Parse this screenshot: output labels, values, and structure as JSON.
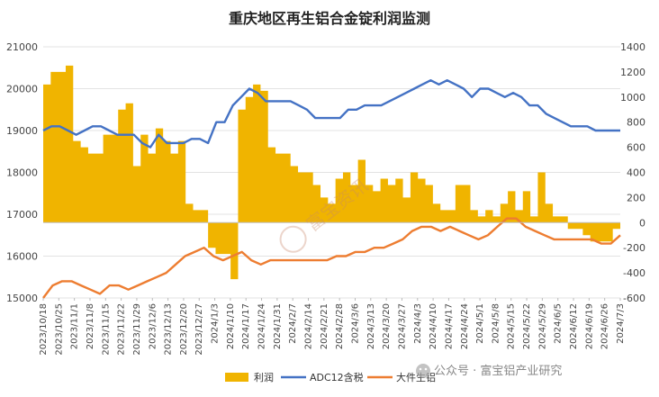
{
  "chart_data": {
    "type": "area+line",
    "title": "重庆地区再生铝合金锭利润监测",
    "xlabel": "",
    "ylabel_left": "",
    "ylabel_right": "",
    "ylim_left": [
      15000,
      21000
    ],
    "yticks_left": [
      "15000",
      "16000",
      "17000",
      "18000",
      "19000",
      "20000",
      "21000"
    ],
    "ylim_right": [
      -600,
      1400
    ],
    "yticks_right": [
      "-600",
      "-400",
      "-200",
      "0",
      "200",
      "400",
      "600",
      "800",
      "1000",
      "1200",
      "1400"
    ],
    "x_ticks": [
      "2023/10/18",
      "2023/10/25",
      "2023/11/1",
      "2023/11/8",
      "2023/11/15",
      "2023/11/22",
      "2023/11/29",
      "2023/12/6",
      "2023/12/13",
      "2023/12/20",
      "2023/12/27",
      "2024/1/3",
      "2024/1/10",
      "2024/1/17",
      "2024/1/24",
      "2024/1/31",
      "2024/2/7",
      "2024/2/14",
      "2024/2/21",
      "2024/2/28",
      "2024/3/6",
      "2024/3/13",
      "2024/3/20",
      "2024/3/27",
      "2024/4/3",
      "2024/4/10",
      "2024/4/17",
      "2024/4/24",
      "2024/5/1",
      "2024/5/8",
      "2024/5/15",
      "2024/5/22",
      "2024/5/29",
      "2024/6/5",
      "2024/6/12",
      "2024/6/19",
      "2024/6/26",
      "2024/7/3"
    ],
    "grid": true,
    "legend_position": "bottom",
    "series": [
      {
        "name": "利润",
        "axis": "right",
        "kind": "area",
        "color": "#f0b400",
        "values": [
          1100,
          1200,
          1200,
          1250,
          650,
          600,
          550,
          550,
          700,
          700,
          900,
          950,
          450,
          700,
          550,
          750,
          650,
          550,
          650,
          150,
          100,
          100,
          -200,
          -250,
          -250,
          -450,
          900,
          1000,
          1100,
          1050,
          600,
          550,
          550,
          450,
          400,
          400,
          300,
          200,
          150,
          350,
          400,
          300,
          500,
          300,
          250,
          350,
          300,
          350,
          200,
          400,
          350,
          300,
          150,
          100,
          100,
          300,
          300,
          100,
          50,
          100,
          50,
          150,
          250,
          100,
          250,
          50,
          400,
          150,
          50,
          50,
          -50,
          -50,
          -100,
          -150,
          -150,
          -150,
          -50,
          -150
        ]
      },
      {
        "name": "ADC12含税",
        "axis": "left",
        "kind": "line",
        "color": "#4472c4",
        "values": [
          19000,
          19100,
          19100,
          19000,
          18900,
          19000,
          19100,
          19100,
          19000,
          18900,
          18900,
          18900,
          18700,
          18600,
          18900,
          18700,
          18700,
          18700,
          18800,
          18800,
          18700,
          19200,
          19200,
          19600,
          19800,
          20000,
          19900,
          19700,
          19700,
          19700,
          19700,
          19600,
          19500,
          19300,
          19300,
          19300,
          19300,
          19500,
          19500,
          19600,
          19600,
          19600,
          19700,
          19800,
          19900,
          20000,
          20100,
          20200,
          20100,
          20200,
          20100,
          20000,
          19800,
          20000,
          20000,
          19900,
          19800,
          19900,
          19800,
          19600,
          19600,
          19400,
          19300,
          19200,
          19100,
          19100,
          19100,
          19000,
          19000,
          19000,
          19000
        ]
      },
      {
        "name": "大件生铝",
        "axis": "left",
        "kind": "line",
        "color": "#ed7d31",
        "values": [
          15000,
          15300,
          15400,
          15400,
          15300,
          15200,
          15100,
          15300,
          15300,
          15200,
          15300,
          15400,
          15500,
          15600,
          15800,
          16000,
          16100,
          16200,
          16000,
          15900,
          16000,
          16100,
          15900,
          15800,
          15900,
          15900,
          15900,
          15900,
          15900,
          15900,
          15900,
          16000,
          16000,
          16100,
          16100,
          16200,
          16200,
          16300,
          16400,
          16600,
          16700,
          16700,
          16600,
          16700,
          16600,
          16500,
          16400,
          16500,
          16700,
          16900,
          16900,
          16700,
          16600,
          16500,
          16400,
          16400,
          16400,
          16400,
          16400,
          16300,
          16300,
          16500
        ]
      }
    ]
  },
  "legend": {
    "items": [
      "利润",
      "ADC12含税",
      "大件生铝"
    ]
  },
  "watermark": {
    "text": "公众号 · 富宝铝产业研究",
    "stamp": "富宝资讯"
  }
}
